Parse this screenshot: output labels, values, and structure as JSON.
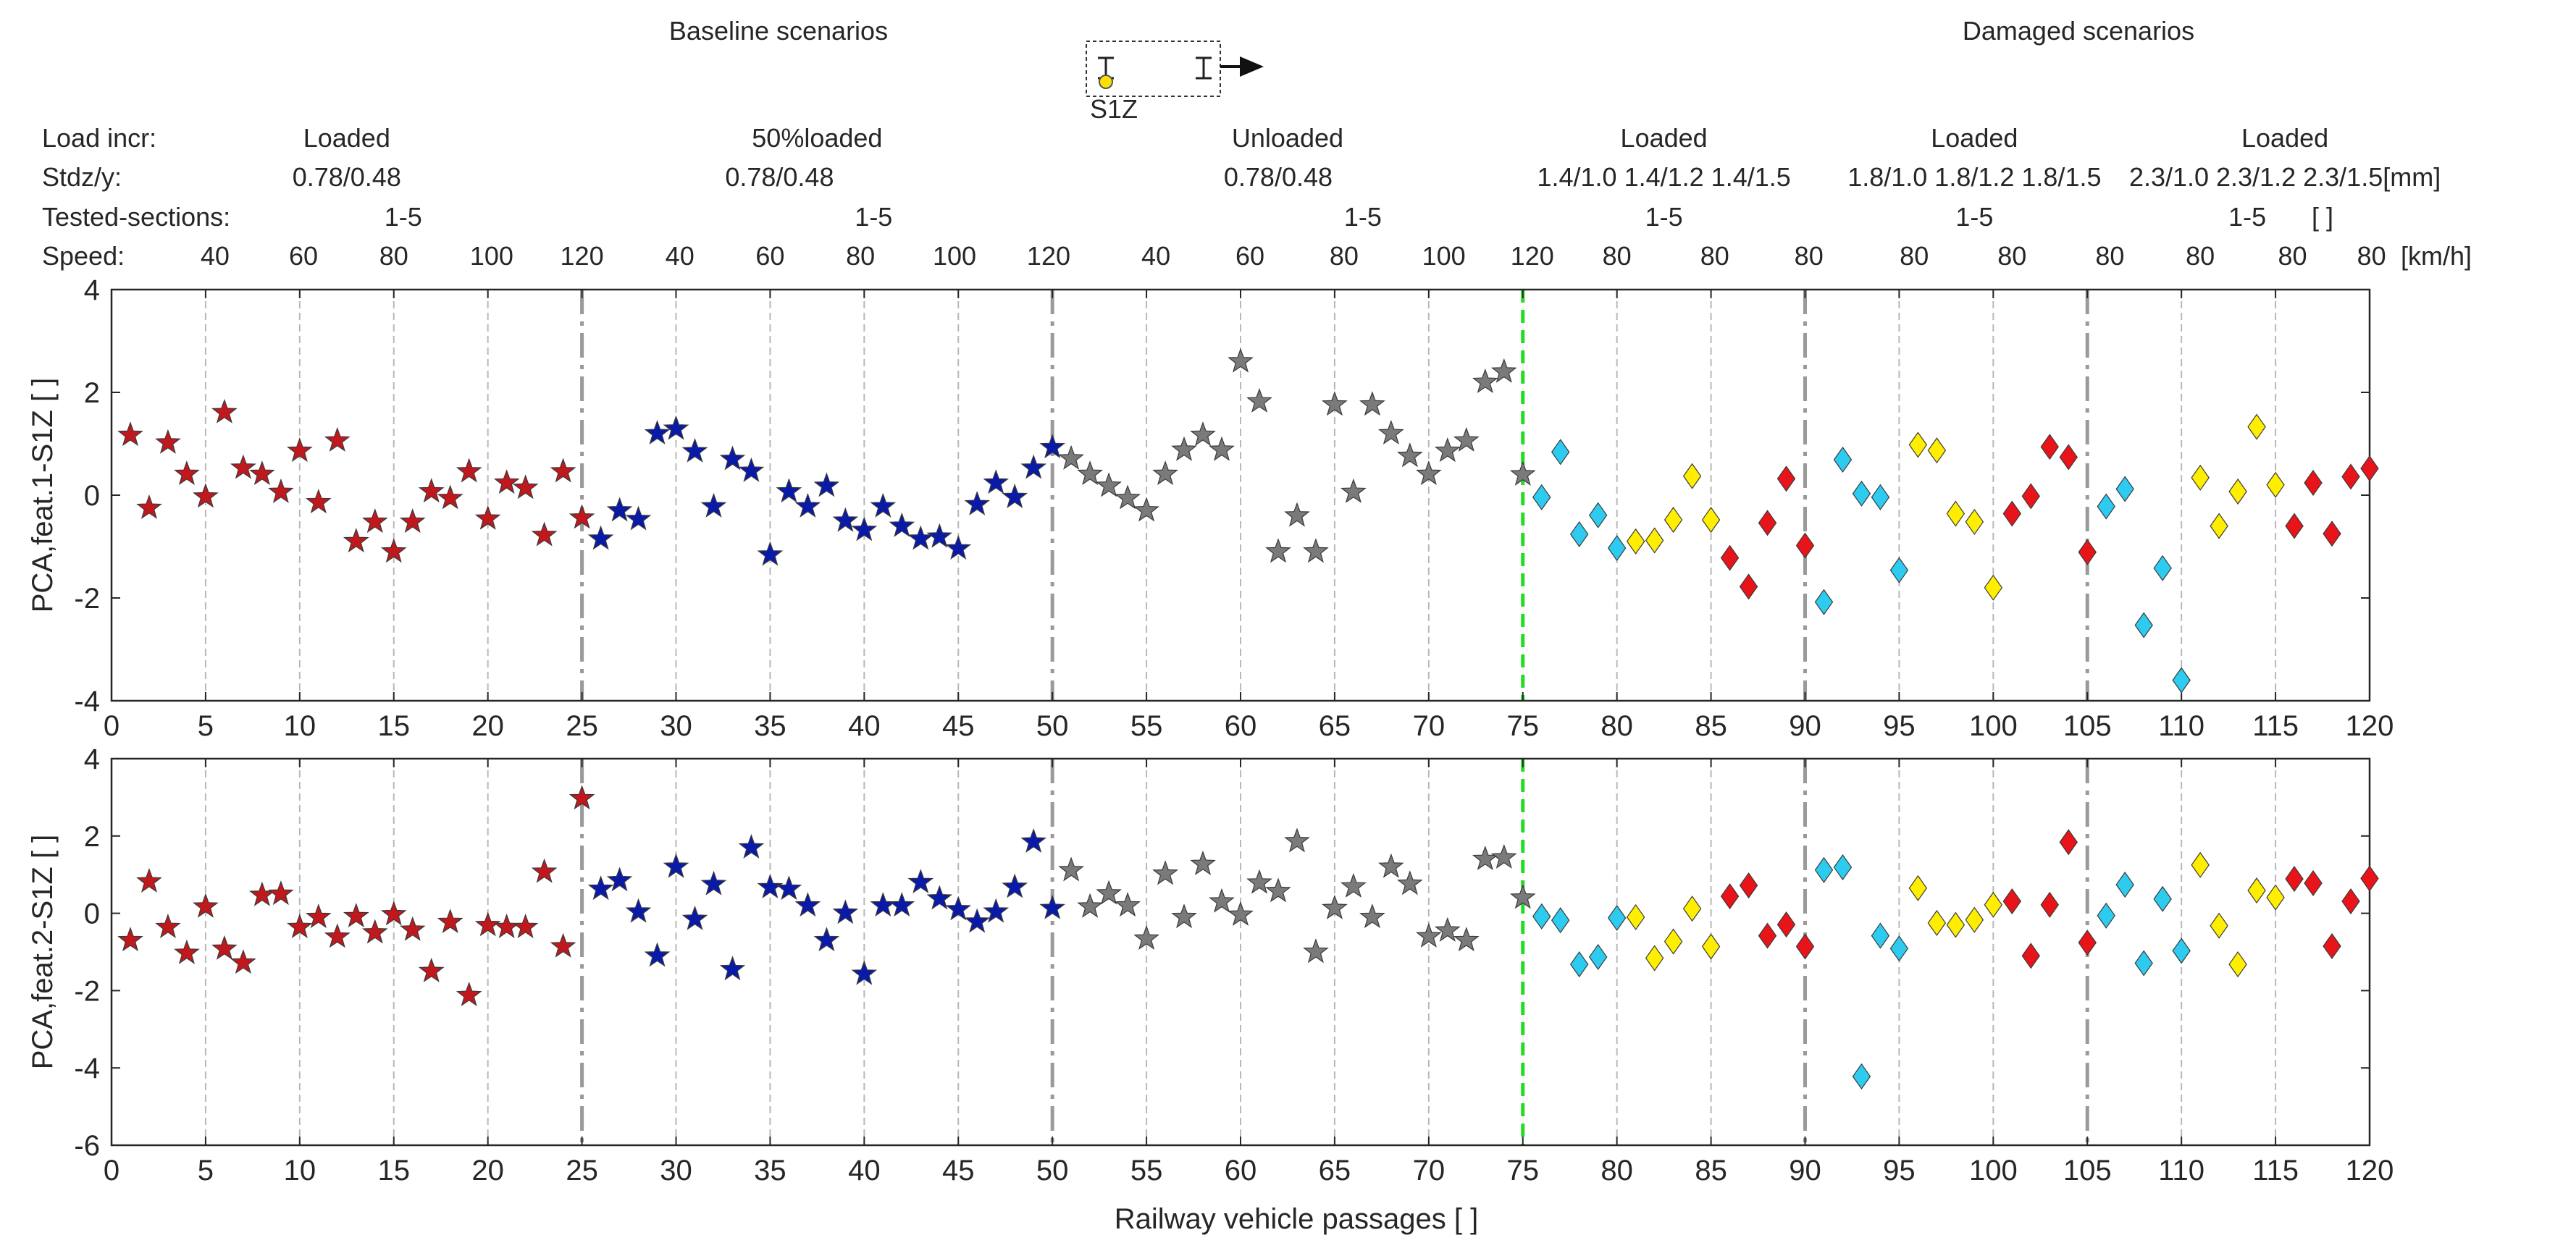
{
  "chart_data": {
    "type": "scatter",
    "top_labels": {
      "left": "Baseline scenarios",
      "right": "Damaged scenarios",
      "sensor": "S1Z"
    },
    "header": {
      "row_labels": [
        "Load incr:",
        "Stdz/y:",
        "Tested-sections:",
        "Speed:"
      ],
      "load_incr": [
        {
          "x": 12.5,
          "text": "Loaded"
        },
        {
          "x": 37.5,
          "text": "50%loaded"
        },
        {
          "x": 62.5,
          "text": "Unloaded"
        },
        {
          "x": 82.5,
          "text": "Loaded"
        },
        {
          "x": 99,
          "text": "Loaded"
        },
        {
          "x": 115.5,
          "text": "Loaded"
        }
      ],
      "stdzy": [
        {
          "x": 12.5,
          "text": "0.78/0.48"
        },
        {
          "x": 35.5,
          "text": "0.78/0.48"
        },
        {
          "x": 62,
          "text": "0.78/0.48"
        },
        {
          "x": 82.5,
          "text": "1.4/1.0 1.4/1.2 1.4/1.5"
        },
        {
          "x": 99,
          "text": "1.8/1.0 1.8/1.2 1.8/1.5"
        },
        {
          "x": 115.5,
          "text": "2.3/1.0 2.3/1.2 2.3/1.5[mm]"
        }
      ],
      "sections": [
        {
          "x": 15.5,
          "text": "1-5"
        },
        {
          "x": 40.5,
          "text": "1-5"
        },
        {
          "x": 66.5,
          "text": "1-5"
        },
        {
          "x": 82.5,
          "text": "1-5"
        },
        {
          "x": 99,
          "text": "1-5"
        },
        {
          "x": 113.5,
          "text": "1-5"
        },
        {
          "x": 117.5,
          "text": "[ ]"
        }
      ],
      "speeds": [
        {
          "x": 5.5,
          "text": "40"
        },
        {
          "x": 10.2,
          "text": "60"
        },
        {
          "x": 15,
          "text": "80"
        },
        {
          "x": 20.2,
          "text": "100"
        },
        {
          "x": 25,
          "text": "120"
        },
        {
          "x": 30.2,
          "text": "40"
        },
        {
          "x": 35,
          "text": "60"
        },
        {
          "x": 39.8,
          "text": "80"
        },
        {
          "x": 44.8,
          "text": "100"
        },
        {
          "x": 49.8,
          "text": "120"
        },
        {
          "x": 55.5,
          "text": "40"
        },
        {
          "x": 60.5,
          "text": "60"
        },
        {
          "x": 65.5,
          "text": "80"
        },
        {
          "x": 70.8,
          "text": "100"
        },
        {
          "x": 75.5,
          "text": "120"
        },
        {
          "x": 80,
          "text": "80"
        },
        {
          "x": 85.2,
          "text": "80"
        },
        {
          "x": 90.2,
          "text": "80"
        },
        {
          "x": 95.8,
          "text": "80"
        },
        {
          "x": 101,
          "text": "80"
        },
        {
          "x": 106.2,
          "text": "80"
        },
        {
          "x": 111,
          "text": "80"
        },
        {
          "x": 115.9,
          "text": "80"
        },
        {
          "x": 120.1,
          "text": "80"
        }
      ],
      "speed_unit": "[km/h]"
    },
    "xlabel": "Railway vehicle passages [ ]",
    "xlim": [
      0,
      120
    ],
    "xticks": [
      0,
      5,
      10,
      15,
      20,
      25,
      30,
      35,
      40,
      45,
      50,
      55,
      60,
      65,
      70,
      75,
      80,
      85,
      90,
      95,
      100,
      105,
      110,
      115,
      120
    ],
    "dividers": [
      25,
      50,
      90,
      105
    ],
    "damage_line": 75,
    "colors": {
      "loaded": "#c0181c",
      "half_loaded": "#0a1aa8",
      "unloaded": "#7a7a7a",
      "damage_a": "#2ecbf0",
      "damage_b": "#ffee00",
      "damage_c": "#e8141a",
      "damage_line": "#22dd22"
    },
    "panels": [
      {
        "ylabel": "PCA,feat.1-S1Z [ ]",
        "ylim": [
          -4,
          4
        ],
        "yticks": [
          -4,
          -2,
          0,
          2,
          4
        ],
        "series": [
          {
            "name": "Baseline loaded",
            "marker": "star",
            "color": "#c0181c",
            "x": [
              1,
              2,
              3,
              4,
              5,
              6,
              7,
              8,
              9,
              10,
              11,
              12,
              13,
              14,
              15,
              16,
              17,
              18,
              19,
              20,
              21,
              22,
              23,
              24,
              25
            ],
            "values": [
              1.17,
              -0.25,
              1.02,
              0.41,
              -0.03,
              1.61,
              0.53,
              0.41,
              0.06,
              0.86,
              -0.14,
              1.06,
              -0.9,
              -0.52,
              -1.1,
              -0.52,
              0.07,
              -0.06,
              0.46,
              -0.46,
              0.24,
              0.14,
              -0.78,
              0.46,
              -0.44
            ]
          },
          {
            "name": "Baseline 50%loaded",
            "marker": "star",
            "color": "#0a1aa8",
            "x": [
              26,
              27,
              28,
              29,
              30,
              31,
              32,
              33,
              34,
              35,
              36,
              37,
              38,
              39,
              40,
              41,
              42,
              43,
              44,
              45,
              46,
              47,
              48,
              49,
              50
            ],
            "values": [
              -0.85,
              -0.3,
              -0.47,
              1.2,
              1.29,
              0.85,
              -0.22,
              0.7,
              0.47,
              -1.16,
              0.07,
              -0.22,
              0.18,
              -0.5,
              -0.68,
              -0.22,
              -0.6,
              -0.85,
              -0.81,
              -1.04,
              -0.18,
              0.24,
              -0.04,
              0.53,
              0.93
            ]
          },
          {
            "name": "Baseline unloaded",
            "marker": "star",
            "color": "#7a7a7a",
            "x": [
              51,
              52,
              53,
              54,
              55,
              56,
              57,
              58,
              59,
              60,
              61,
              62,
              63,
              64,
              65,
              66,
              67,
              68,
              69,
              70,
              71,
              72,
              73,
              74,
              75
            ],
            "values": [
              0.71,
              0.41,
              0.18,
              -0.06,
              -0.3,
              0.41,
              0.88,
              1.17,
              0.88,
              2.6,
              1.82,
              -1.1,
              -0.4,
              -1.1,
              1.76,
              0.06,
              1.76,
              1.2,
              0.76,
              0.41,
              0.86,
              1.06,
              2.2,
              2.4,
              0.4
            ]
          },
          {
            "name": "Damage 1.4/1.0",
            "marker": "diamond",
            "color": "#2ecbf0",
            "x": [
              76,
              77,
              78,
              79,
              80
            ],
            "values": [
              -0.04,
              0.84,
              -0.76,
              -0.39,
              -1.03
            ]
          },
          {
            "name": "Damage 1.4/1.2",
            "marker": "diamond",
            "color": "#ffee00",
            "x": [
              81,
              82,
              83,
              84,
              85
            ],
            "values": [
              -0.9,
              -0.88,
              -0.48,
              0.37,
              -0.48
            ]
          },
          {
            "name": "Damage 1.4/1.5",
            "marker": "diamond",
            "color": "#e8141a",
            "x": [
              86,
              87,
              88,
              89,
              90
            ],
            "values": [
              -1.22,
              -1.78,
              -0.54,
              0.32,
              -0.98
            ]
          },
          {
            "name": "Damage 1.8/1.0",
            "marker": "diamond",
            "color": "#2ecbf0",
            "x": [
              91,
              92,
              93,
              94,
              95
            ],
            "values": [
              -2.08,
              0.69,
              0.03,
              -0.04,
              -1.46
            ]
          },
          {
            "name": "Damage 1.8/1.2",
            "marker": "diamond",
            "color": "#ffee00",
            "x": [
              96,
              97,
              98,
              99,
              100
            ],
            "values": [
              0.98,
              0.87,
              -0.36,
              -0.52,
              -1.8
            ]
          },
          {
            "name": "Damage 1.8/1.5",
            "marker": "diamond",
            "color": "#e8141a",
            "x": [
              101,
              102,
              103,
              104,
              105
            ],
            "values": [
              -0.36,
              -0.02,
              0.94,
              0.74,
              -1.11
            ]
          },
          {
            "name": "Damage 2.3/1.0",
            "marker": "diamond",
            "color": "#2ecbf0",
            "x": [
              106,
              107,
              108,
              109,
              110
            ],
            "values": [
              -0.22,
              0.12,
              -2.53,
              -1.42,
              -3.6
            ]
          },
          {
            "name": "Damage 2.3/1.2",
            "marker": "diamond",
            "color": "#ffee00",
            "x": [
              111,
              112,
              113,
              114,
              115
            ],
            "values": [
              0.34,
              -0.6,
              0.07,
              1.33,
              0.2
            ]
          },
          {
            "name": "Damage 2.3/1.5",
            "marker": "diamond",
            "color": "#e8141a",
            "x": [
              116,
              117,
              118,
              119,
              120
            ],
            "values": [
              -0.6,
              0.24,
              -0.75,
              0.36,
              0.52
            ]
          }
        ]
      },
      {
        "ylabel": "PCA,feat.2-S1Z [ ]",
        "ylim": [
          -6,
          4
        ],
        "yticks": [
          -6,
          -4,
          -2,
          0,
          2,
          4
        ],
        "series": [
          {
            "name": "Baseline loaded",
            "marker": "star",
            "color": "#c0181c",
            "x": [
              1,
              2,
              3,
              4,
              5,
              6,
              7,
              8,
              9,
              10,
              11,
              12,
              13,
              14,
              15,
              16,
              17,
              18,
              19,
              20,
              21,
              22,
              23,
              24,
              25
            ],
            "values": [
              -0.7,
              0.82,
              -0.36,
              -1.03,
              0.17,
              -0.92,
              -1.28,
              0.47,
              0.5,
              -0.36,
              -0.1,
              -0.61,
              -0.08,
              -0.5,
              -0.03,
              -0.43,
              -1.5,
              -0.23,
              -2.12,
              -0.31,
              -0.36,
              -0.36,
              1.07,
              -0.86,
              2.97
            ]
          },
          {
            "name": "Baseline 50%loaded",
            "marker": "star",
            "color": "#0a1aa8",
            "x": [
              26,
              27,
              28,
              29,
              30,
              31,
              32,
              33,
              34,
              35,
              36,
              37,
              38,
              39,
              40,
              41,
              42,
              43,
              44,
              45,
              46,
              47,
              48,
              49,
              50
            ],
            "values": [
              0.63,
              0.85,
              0.04,
              -1.1,
              1.2,
              -0.15,
              0.75,
              -1.45,
              1.7,
              0.67,
              0.63,
              0.2,
              -0.7,
              0.01,
              -1.57,
              0.2,
              0.2,
              0.8,
              0.38,
              0.1,
              -0.22,
              0.04,
              0.68,
              1.85,
              0.13
            ]
          },
          {
            "name": "Baseline unloaded",
            "marker": "star",
            "color": "#7a7a7a",
            "x": [
              51,
              52,
              53,
              54,
              55,
              56,
              57,
              58,
              59,
              60,
              61,
              62,
              63,
              64,
              65,
              66,
              67,
              68,
              69,
              70,
              71,
              72,
              73,
              74,
              75
            ],
            "values": [
              1.11,
              0.17,
              0.51,
              0.2,
              -0.66,
              1.02,
              -0.1,
              1.27,
              0.3,
              -0.04,
              0.79,
              0.57,
              1.86,
              -1.0,
              0.13,
              0.69,
              -0.1,
              1.2,
              0.76,
              -0.6,
              -0.45,
              -0.7,
              1.4,
              1.44,
              0.4
            ]
          },
          {
            "name": "Damage 1.4/1.0",
            "marker": "diamond",
            "color": "#2ecbf0",
            "x": [
              76,
              77,
              78,
              79,
              80
            ],
            "values": [
              -0.08,
              -0.18,
              -1.32,
              -1.13,
              -0.12
            ]
          },
          {
            "name": "Damage 1.4/1.2",
            "marker": "diamond",
            "color": "#ffee00",
            "x": [
              81,
              82,
              83,
              84,
              85
            ],
            "values": [
              -0.1,
              -1.16,
              -0.73,
              0.12,
              -0.86
            ]
          },
          {
            "name": "Damage 1.4/1.5",
            "marker": "diamond",
            "color": "#e8141a",
            "x": [
              86,
              87,
              88,
              89,
              90
            ],
            "values": [
              0.44,
              0.72,
              -0.58,
              -0.29,
              -0.86
            ]
          },
          {
            "name": "Damage 1.8/1.0",
            "marker": "diamond",
            "color": "#2ecbf0",
            "x": [
              91,
              92,
              93,
              94,
              95
            ],
            "values": [
              1.12,
              1.19,
              -4.22,
              -0.58,
              -0.91
            ]
          },
          {
            "name": "Damage 1.8/1.2",
            "marker": "diamond",
            "color": "#ffee00",
            "x": [
              96,
              97,
              98,
              99,
              100
            ],
            "values": [
              0.65,
              -0.25,
              -0.3,
              -0.17,
              0.22
            ]
          },
          {
            "name": "Damage 1.8/1.5",
            "marker": "diamond",
            "color": "#e8141a",
            "x": [
              101,
              102,
              103,
              104,
              105
            ],
            "values": [
              0.31,
              -1.1,
              0.22,
              1.84,
              -0.76
            ]
          },
          {
            "name": "Damage 2.3/1.0",
            "marker": "diamond",
            "color": "#2ecbf0",
            "x": [
              106,
              107,
              108,
              109,
              110
            ],
            "values": [
              -0.06,
              0.74,
              -1.29,
              0.37,
              -0.97
            ]
          },
          {
            "name": "Damage 2.3/1.2",
            "marker": "diamond",
            "color": "#ffee00",
            "x": [
              111,
              112,
              113,
              114,
              115
            ],
            "values": [
              1.25,
              -0.32,
              -1.32,
              0.59,
              0.41
            ]
          },
          {
            "name": "Damage 2.3/1.5",
            "marker": "diamond",
            "color": "#e8141a",
            "x": [
              116,
              117,
              118,
              119,
              120
            ],
            "values": [
              0.89,
              0.78,
              -0.85,
              0.31,
              0.9
            ]
          }
        ]
      }
    ]
  }
}
